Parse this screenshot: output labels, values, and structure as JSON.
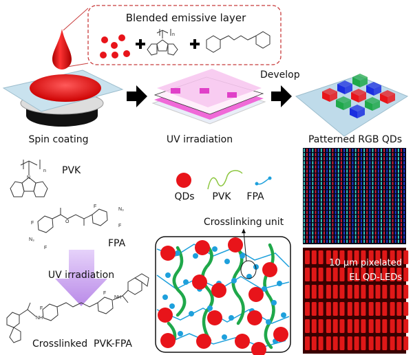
{
  "header": {
    "blend_title": "Blended emissive layer",
    "develop": "Develop"
  },
  "steps": {
    "spin": "Spin coating",
    "uv": "UV irradiation",
    "patterned": "Patterned RGB QDs"
  },
  "chemistry": {
    "pvk": "PVK",
    "fpa": "FPA",
    "uv": "UV irradiation",
    "crosslinked": "Crosslinked  PVK-FPA",
    "atoms": {
      "n": "n",
      "N": "N",
      "F": "F",
      "N3": "N₃",
      "O": "O",
      "NH": "NH"
    }
  },
  "legend": {
    "qds": "QDs",
    "pvk": "PVK",
    "fpa": "FPA"
  },
  "network": {
    "crosslink_label": "Crosslinking unit"
  },
  "micrograph": {
    "line1": "10 µm pixelated",
    "line2": "EL QD-LEDs"
  },
  "colors": {
    "qd_red": "#e8141a",
    "pvk_green": "#1fa84a",
    "fpa_blue": "#1ea0dc",
    "mask_pink": "#f06ad8",
    "box_dash": "#c83a3a",
    "arrow_purple": "#c9a0f0"
  }
}
